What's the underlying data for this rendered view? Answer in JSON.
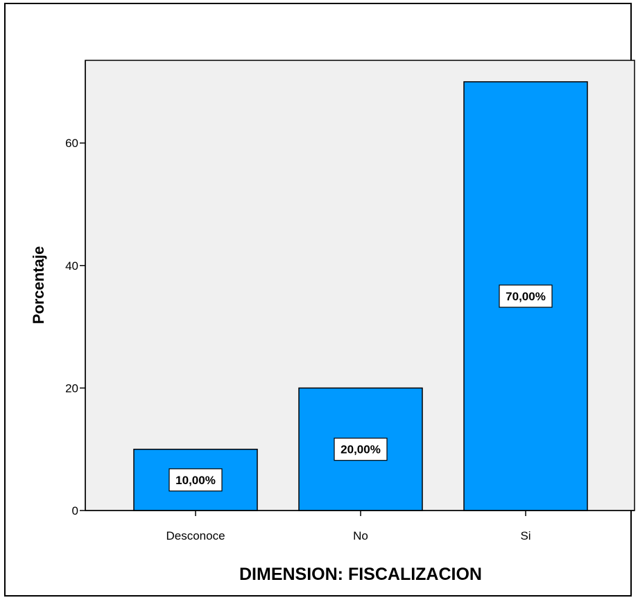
{
  "chart_data": {
    "type": "bar",
    "categories": [
      "Desconoce",
      "No",
      "Si"
    ],
    "values": [
      10,
      20,
      70
    ],
    "data_labels": [
      "10,00%",
      "20,00%",
      "70,00%"
    ],
    "xlabel": "DIMENSION: FISCALIZACION",
    "ylabel": "Porcentaje",
    "ylim": [
      0,
      73.5
    ],
    "yticks": [
      0,
      20,
      40,
      60
    ],
    "grid": false,
    "colors": {
      "bar": "#0099ff",
      "plot_background": "#f0f0f0",
      "axis": "#000000"
    }
  }
}
